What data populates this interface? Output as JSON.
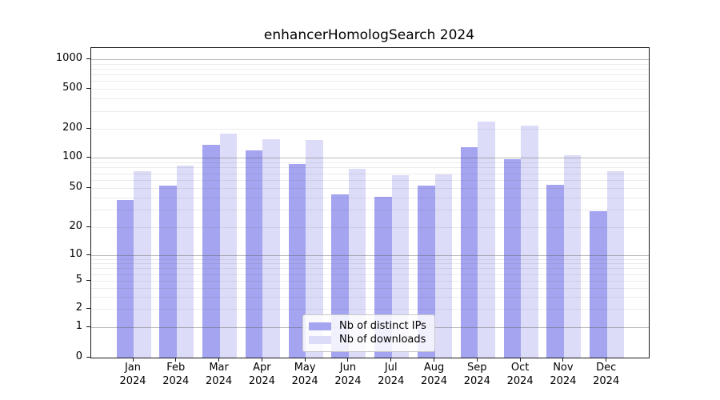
{
  "chart_data": {
    "type": "bar",
    "title": "enhancerHomologSearch 2024",
    "categories": [
      "Jan",
      "Feb",
      "Mar",
      "Apr",
      "May",
      "Jun",
      "Jul",
      "Aug",
      "Sep",
      "Oct",
      "Nov",
      "Dec"
    ],
    "year": "2024",
    "series": [
      {
        "name": "Nb of distinct IPs",
        "color": "#a4a4f0",
        "values": [
          38,
          53,
          137,
          118,
          86,
          43,
          41,
          53,
          128,
          96,
          54,
          29
        ]
      },
      {
        "name": "Nb of downloads",
        "color": "#dcdcf8",
        "values": [
          74,
          83,
          178,
          155,
          153,
          78,
          67,
          68,
          235,
          216,
          105,
          74
        ]
      }
    ],
    "y_axis": {
      "scale": "symlog",
      "tick_values": [
        0,
        1,
        2,
        5,
        10,
        20,
        50,
        100,
        200,
        500,
        1000
      ],
      "tick_labels": [
        "0",
        "1",
        "2",
        "5",
        "10",
        "20",
        "50",
        "100",
        "200",
        "500",
        "1000"
      ],
      "minor_tick_values": [
        3,
        4,
        6,
        7,
        8,
        9,
        30,
        40,
        60,
        70,
        80,
        90,
        300,
        400,
        600,
        700,
        800,
        900
      ]
    },
    "legend": {
      "position": "lower center"
    },
    "grid": true,
    "colors": {
      "background": "#ffffff",
      "spine": "#1a1a1a",
      "text": "#000000"
    }
  }
}
